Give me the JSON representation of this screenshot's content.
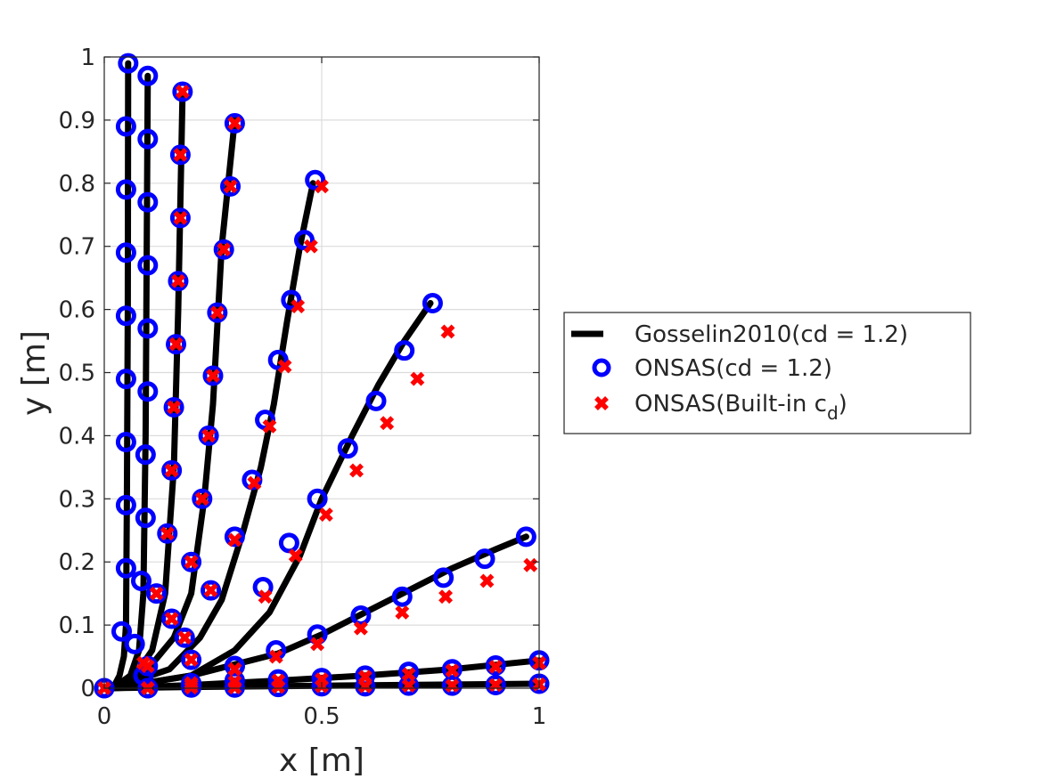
{
  "chart_data": {
    "type": "line",
    "title": "",
    "xlabel": "x [m]",
    "ylabel": "y [m]",
    "xlim": [
      0,
      1
    ],
    "ylim": [
      0,
      1
    ],
    "xticks": [
      0,
      0.5,
      1
    ],
    "xtick_labels": [
      "0",
      "0.5",
      "1"
    ],
    "yticks": [
      0,
      0.1,
      0.2,
      0.3,
      0.4,
      0.5,
      0.6,
      0.7,
      0.8,
      0.9,
      1
    ],
    "ytick_labels": [
      "0",
      "0.1",
      "0.2",
      "0.3",
      "0.4",
      "0.5",
      "0.6",
      "0.7",
      "0.8",
      "0.9",
      "1"
    ],
    "grid": true,
    "legend_position": "right",
    "legend": [
      {
        "key": "gosselin",
        "label": "Gosselin2010(cd = 1.2)",
        "marker": "line",
        "color": "#000000"
      },
      {
        "key": "onsas",
        "label": "ONSAS(cd = 1.2)",
        "marker": "circle",
        "color": "#0000ff"
      },
      {
        "key": "builtin",
        "label": "ONSAS(Built-in c",
        "label_sub": "d",
        "label_tail": ")",
        "marker": "x",
        "color": "#ff0000"
      }
    ],
    "series": [
      {
        "gosselin": [
          [
            0.02,
            0
          ],
          [
            0.035,
            0.02
          ],
          [
            0.045,
            0.05
          ],
          [
            0.05,
            0.1
          ],
          [
            0.052,
            0.3
          ],
          [
            0.054,
            0.6
          ],
          [
            0.055,
            0.99
          ]
        ],
        "onsas": [
          [
            0,
            0
          ],
          [
            0.04,
            0.09
          ],
          [
            0.05,
            0.19
          ],
          [
            0.05,
            0.29
          ],
          [
            0.05,
            0.39
          ],
          [
            0.05,
            0.49
          ],
          [
            0.05,
            0.59
          ],
          [
            0.05,
            0.69
          ],
          [
            0.05,
            0.79
          ],
          [
            0.05,
            0.89
          ],
          [
            0.055,
            0.99
          ]
        ],
        "builtin": []
      },
      {
        "gosselin": [
          [
            0.02,
            0
          ],
          [
            0.06,
            0.02
          ],
          [
            0.08,
            0.06
          ],
          [
            0.09,
            0.15
          ],
          [
            0.095,
            0.4
          ],
          [
            0.1,
            0.97
          ]
        ],
        "onsas": [
          [
            0.07,
            0.07
          ],
          [
            0.085,
            0.17
          ],
          [
            0.095,
            0.27
          ],
          [
            0.095,
            0.37
          ],
          [
            0.1,
            0.47
          ],
          [
            0.1,
            0.57
          ],
          [
            0.1,
            0.67
          ],
          [
            0.1,
            0.77
          ],
          [
            0.1,
            0.87
          ],
          [
            0.1,
            0.97
          ]
        ],
        "builtin": []
      },
      {
        "gosselin": [
          [
            0.02,
            0
          ],
          [
            0.07,
            0.02
          ],
          [
            0.11,
            0.06
          ],
          [
            0.14,
            0.15
          ],
          [
            0.16,
            0.35
          ],
          [
            0.17,
            0.6
          ],
          [
            0.18,
            0.94
          ]
        ],
        "onsas": [
          [
            0.09,
            0.02
          ],
          [
            0.12,
            0.15
          ],
          [
            0.145,
            0.245
          ],
          [
            0.155,
            0.345
          ],
          [
            0.16,
            0.445
          ],
          [
            0.165,
            0.545
          ],
          [
            0.17,
            0.645
          ],
          [
            0.175,
            0.745
          ],
          [
            0.175,
            0.845
          ],
          [
            0.18,
            0.945
          ]
        ],
        "builtin": [
          [
            0.09,
            0.04
          ],
          [
            0.12,
            0.15
          ],
          [
            0.145,
            0.245
          ],
          [
            0.155,
            0.345
          ],
          [
            0.16,
            0.445
          ],
          [
            0.165,
            0.545
          ],
          [
            0.17,
            0.645
          ],
          [
            0.175,
            0.745
          ],
          [
            0.175,
            0.845
          ],
          [
            0.18,
            0.945
          ]
        ]
      },
      {
        "gosselin": [
          [
            0.02,
            0
          ],
          [
            0.1,
            0.03
          ],
          [
            0.16,
            0.08
          ],
          [
            0.2,
            0.15
          ],
          [
            0.23,
            0.3
          ],
          [
            0.25,
            0.45
          ],
          [
            0.27,
            0.7
          ],
          [
            0.3,
            0.9
          ]
        ],
        "onsas": [
          [
            0.1,
            0.035
          ],
          [
            0.155,
            0.11
          ],
          [
            0.185,
            0.08
          ],
          [
            0.2,
            0.2
          ],
          [
            0.225,
            0.3
          ],
          [
            0.24,
            0.4
          ],
          [
            0.25,
            0.495
          ],
          [
            0.26,
            0.595
          ],
          [
            0.275,
            0.695
          ],
          [
            0.29,
            0.795
          ],
          [
            0.3,
            0.895
          ]
        ],
        "builtin": [
          [
            0.1,
            0.035
          ],
          [
            0.155,
            0.11
          ],
          [
            0.185,
            0.08
          ],
          [
            0.2,
            0.2
          ],
          [
            0.225,
            0.3
          ],
          [
            0.24,
            0.4
          ],
          [
            0.25,
            0.495
          ],
          [
            0.26,
            0.595
          ],
          [
            0.275,
            0.695
          ],
          [
            0.29,
            0.795
          ],
          [
            0.3,
            0.895
          ]
        ]
      },
      {
        "gosselin": [
          [
            0.02,
            0
          ],
          [
            0.15,
            0.03
          ],
          [
            0.22,
            0.08
          ],
          [
            0.27,
            0.14
          ],
          [
            0.32,
            0.25
          ],
          [
            0.36,
            0.35
          ],
          [
            0.39,
            0.45
          ],
          [
            0.42,
            0.58
          ],
          [
            0.45,
            0.7
          ],
          [
            0.48,
            0.8
          ]
        ],
        "onsas": [
          [
            0.2,
            0.045
          ],
          [
            0.245,
            0.155
          ],
          [
            0.3,
            0.24
          ],
          [
            0.34,
            0.33
          ],
          [
            0.37,
            0.425
          ],
          [
            0.4,
            0.52
          ],
          [
            0.43,
            0.615
          ],
          [
            0.46,
            0.71
          ],
          [
            0.485,
            0.805
          ]
        ],
        "builtin": [
          [
            0.2,
            0.045
          ],
          [
            0.245,
            0.155
          ],
          [
            0.3,
            0.235
          ],
          [
            0.345,
            0.325
          ],
          [
            0.38,
            0.415
          ],
          [
            0.415,
            0.51
          ],
          [
            0.445,
            0.605
          ],
          [
            0.475,
            0.7
          ],
          [
            0.5,
            0.795
          ]
        ]
      },
      {
        "gosselin": [
          [
            0.02,
            0
          ],
          [
            0.2,
            0.02
          ],
          [
            0.3,
            0.06
          ],
          [
            0.38,
            0.12
          ],
          [
            0.45,
            0.21
          ],
          [
            0.5,
            0.3
          ],
          [
            0.57,
            0.4
          ],
          [
            0.63,
            0.48
          ],
          [
            0.69,
            0.55
          ],
          [
            0.75,
            0.61
          ]
        ],
        "onsas": [
          [
            0.3,
            0.035
          ],
          [
            0.365,
            0.16
          ],
          [
            0.425,
            0.23
          ],
          [
            0.49,
            0.3
          ],
          [
            0.56,
            0.38
          ],
          [
            0.625,
            0.455
          ],
          [
            0.69,
            0.535
          ],
          [
            0.755,
            0.61
          ]
        ],
        "builtin": [
          [
            0.3,
            0.03
          ],
          [
            0.37,
            0.145
          ],
          [
            0.44,
            0.21
          ],
          [
            0.51,
            0.275
          ],
          [
            0.58,
            0.345
          ],
          [
            0.65,
            0.42
          ],
          [
            0.72,
            0.49
          ],
          [
            0.79,
            0.565
          ]
        ]
      },
      {
        "gosselin": [
          [
            0.02,
            0
          ],
          [
            0.2,
            0.02
          ],
          [
            0.4,
            0.055
          ],
          [
            0.5,
            0.085
          ],
          [
            0.6,
            0.12
          ],
          [
            0.7,
            0.155
          ],
          [
            0.8,
            0.19
          ],
          [
            0.9,
            0.22
          ],
          [
            0.97,
            0.24
          ]
        ],
        "onsas": [
          [
            0.2,
            0.005
          ],
          [
            0.3,
            0.035
          ],
          [
            0.395,
            0.06
          ],
          [
            0.49,
            0.085
          ],
          [
            0.59,
            0.115
          ],
          [
            0.685,
            0.145
          ],
          [
            0.78,
            0.175
          ],
          [
            0.875,
            0.205
          ],
          [
            0.97,
            0.24
          ]
        ],
        "builtin": [
          [
            0.2,
            0.005
          ],
          [
            0.3,
            0.03
          ],
          [
            0.395,
            0.05
          ],
          [
            0.49,
            0.07
          ],
          [
            0.59,
            0.095
          ],
          [
            0.685,
            0.12
          ],
          [
            0.785,
            0.145
          ],
          [
            0.88,
            0.17
          ],
          [
            0.98,
            0.195
          ]
        ]
      },
      {
        "gosselin": [
          [
            0.02,
            0
          ],
          [
            0.2,
            0.005
          ],
          [
            0.4,
            0.012
          ],
          [
            0.6,
            0.02
          ],
          [
            0.8,
            0.03
          ],
          [
            1.0,
            0.044
          ]
        ],
        "onsas": [
          [
            0.1,
            0
          ],
          [
            0.2,
            0.008
          ],
          [
            0.3,
            0.012
          ],
          [
            0.4,
            0.014
          ],
          [
            0.5,
            0.016
          ],
          [
            0.6,
            0.02
          ],
          [
            0.7,
            0.026
          ],
          [
            0.8,
            0.03
          ],
          [
            0.9,
            0.036
          ],
          [
            1.0,
            0.044
          ]
        ],
        "builtin": [
          [
            0.1,
            0
          ],
          [
            0.2,
            0.008
          ],
          [
            0.3,
            0.01
          ],
          [
            0.4,
            0.012
          ],
          [
            0.5,
            0.014
          ],
          [
            0.6,
            0.018
          ],
          [
            0.7,
            0.022
          ],
          [
            0.8,
            0.028
          ],
          [
            0.9,
            0.034
          ],
          [
            1.0,
            0.04
          ]
        ]
      },
      {
        "gosselin": [
          [
            0,
            0
          ],
          [
            0.2,
            0.002
          ],
          [
            0.5,
            0.004
          ],
          [
            1.0,
            0.007
          ]
        ],
        "onsas": [
          [
            0,
            0
          ],
          [
            0.1,
            0
          ],
          [
            0.2,
            0.001
          ],
          [
            0.3,
            0.001
          ],
          [
            0.4,
            0.002
          ],
          [
            0.5,
            0.003
          ],
          [
            0.6,
            0.003
          ],
          [
            0.7,
            0.004
          ],
          [
            0.8,
            0.004
          ],
          [
            0.9,
            0.005
          ],
          [
            1.0,
            0.007
          ]
        ],
        "builtin": [
          [
            0,
            0
          ],
          [
            0.1,
            0
          ],
          [
            0.2,
            0.001
          ],
          [
            0.3,
            0.001
          ],
          [
            0.4,
            0.002
          ],
          [
            0.5,
            0.003
          ],
          [
            0.6,
            0.003
          ],
          [
            0.7,
            0.004
          ],
          [
            0.8,
            0.004
          ],
          [
            0.9,
            0.005
          ],
          [
            1.0,
            0.006
          ]
        ]
      }
    ]
  }
}
